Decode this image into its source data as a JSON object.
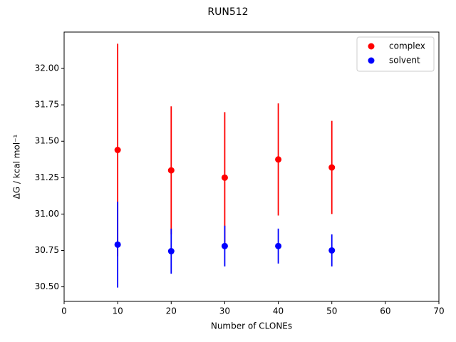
{
  "chart_data": {
    "type": "errorbar-scatter",
    "title": "RUN512",
    "x_label": "Number of CLONEs",
    "y_label": "ΔG / kcal mol⁻¹",
    "x": [
      10,
      20,
      30,
      40,
      50
    ],
    "series": [
      {
        "name": "complex",
        "color": "#ff0000",
        "values": [
          31.44,
          31.3,
          31.25,
          31.375,
          31.32
        ],
        "errors": [
          0.73,
          0.44,
          0.45,
          0.385,
          0.32
        ]
      },
      {
        "name": "solvent",
        "color": "#0000ff",
        "values": [
          30.79,
          30.745,
          30.78,
          30.78,
          30.75
        ],
        "errors": [
          0.295,
          0.155,
          0.14,
          0.12,
          0.11
        ]
      }
    ],
    "xlim": [
      0,
      70
    ],
    "xticks": [
      0,
      10,
      20,
      30,
      40,
      50,
      60,
      70
    ],
    "ylim": [
      30.4,
      32.25
    ],
    "yticks": [
      {
        "value": 30.5,
        "label": "30.50"
      },
      {
        "value": 30.75,
        "label": "30.75"
      },
      {
        "value": 31.0,
        "label": "31.00"
      },
      {
        "value": 31.25,
        "label": "31.25"
      },
      {
        "value": 31.5,
        "label": "31.50"
      },
      {
        "value": 31.75,
        "label": "31.75"
      },
      {
        "value": 32.0,
        "label": "32.00"
      }
    ],
    "legend": "upper right",
    "grid": false
  }
}
